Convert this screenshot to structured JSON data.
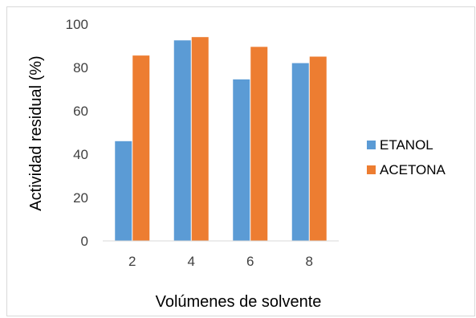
{
  "chart_data": {
    "type": "bar",
    "title": "",
    "xlabel": "Volúmenes de solvente",
    "ylabel": "Actividad residual (%)",
    "categories": [
      "2",
      "4",
      "6",
      "8"
    ],
    "ylim": [
      0,
      100
    ],
    "yticks": [
      0,
      20,
      40,
      60,
      80,
      100
    ],
    "grid": false,
    "legend_position": "right",
    "series": [
      {
        "name": "ETANOL",
        "color": "#5b9bd5",
        "values": [
          46,
          92.5,
          74.5,
          82
        ]
      },
      {
        "name": "ACETONA",
        "color": "#ed7d31",
        "values": [
          85.5,
          94,
          89.5,
          85
        ]
      }
    ]
  }
}
